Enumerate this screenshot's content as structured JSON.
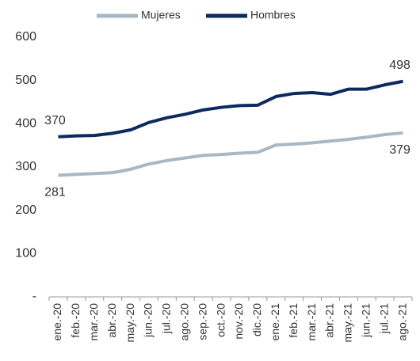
{
  "chart_data": {
    "type": "line",
    "categories": [
      "ene.-20",
      "feb.-20",
      "mar.-20",
      "abr.-20",
      "may.-20",
      "jun.-20",
      "jul.-20",
      "ago.-20",
      "sep.-20",
      "oct.-20",
      "nov.-20",
      "dic.-20",
      "ene.-21",
      "feb.-21",
      "mar.-21",
      "abr.-21",
      "may.-21",
      "jun.-21",
      "jul.-21",
      "ago.-21"
    ],
    "series": [
      {
        "name": "Mujeres",
        "color": "#a7b8c4",
        "values": [
          281,
          283,
          285,
          287,
          295,
          307,
          315,
          321,
          327,
          329,
          332,
          334,
          351,
          353,
          356,
          360,
          364,
          369,
          375,
          379
        ]
      },
      {
        "name": "Hombres",
        "color": "#0d2a5e",
        "values": [
          370,
          372,
          373,
          378,
          386,
          403,
          414,
          422,
          432,
          438,
          442,
          443,
          463,
          470,
          472,
          468,
          480,
          480,
          490,
          498
        ]
      }
    ],
    "ylim": [
      0,
      600
    ],
    "yticks": [
      {
        "value": 0,
        "label": "-"
      },
      100,
      200,
      300,
      400,
      500,
      600
    ],
    "data_labels": "ends",
    "legend": "top"
  }
}
